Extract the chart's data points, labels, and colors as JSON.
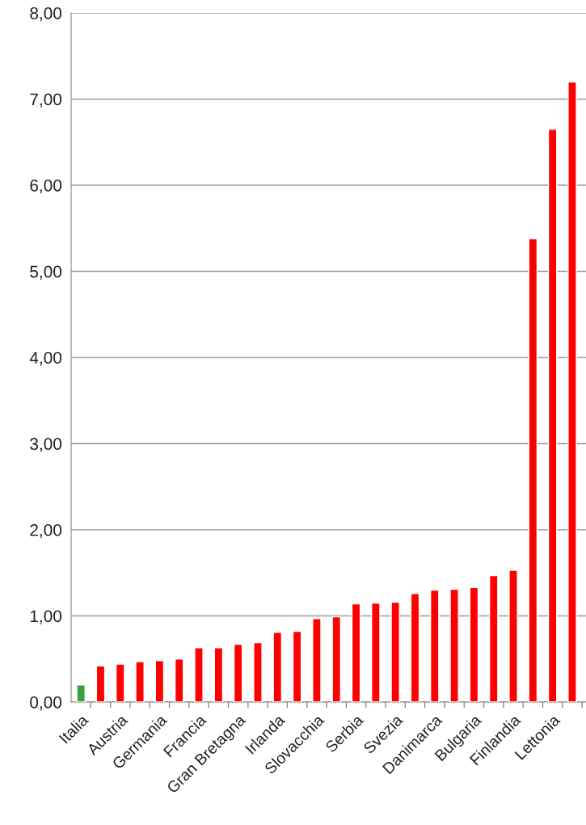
{
  "chart_data": {
    "type": "bar",
    "categories": [
      "Italia",
      null,
      "Austria",
      null,
      "Germania",
      null,
      "Francia",
      null,
      "Gran Bretagna",
      null,
      "Irlanda",
      null,
      "Slovacchia",
      null,
      "Serbia",
      null,
      "Svezia",
      null,
      "Danimarca",
      null,
      "Bulgaria",
      null,
      "Finlandia",
      null,
      "Lettonia",
      null
    ],
    "values": [
      0.2,
      0.42,
      0.44,
      0.47,
      0.48,
      0.5,
      0.63,
      0.63,
      0.67,
      0.69,
      0.81,
      0.82,
      0.97,
      0.99,
      1.14,
      1.15,
      1.16,
      1.26,
      1.3,
      1.31,
      1.33,
      1.47,
      1.53,
      5.38,
      6.65,
      7.2
    ],
    "colors": [
      "#3f9f3f",
      "#ff0000",
      "#ff0000",
      "#ff0000",
      "#ff0000",
      "#ff0000",
      "#ff0000",
      "#ff0000",
      "#ff0000",
      "#ff0000",
      "#ff0000",
      "#ff0000",
      "#ff0000",
      "#ff0000",
      "#ff0000",
      "#ff0000",
      "#ff0000",
      "#ff0000",
      "#ff0000",
      "#ff0000",
      "#ff0000",
      "#ff0000",
      "#ff0000",
      "#ff0000",
      "#ff0000",
      "#ff0000"
    ],
    "ylim": [
      0,
      8
    ],
    "yticks": [
      {
        "value": 0,
        "label": "0,00"
      },
      {
        "value": 1,
        "label": "1,00"
      },
      {
        "value": 2,
        "label": "2,00"
      },
      {
        "value": 3,
        "label": "3,00"
      },
      {
        "value": 4,
        "label": "4,00"
      },
      {
        "value": 5,
        "label": "5,00"
      },
      {
        "value": 6,
        "label": "6,00"
      },
      {
        "value": 7,
        "label": "7,00"
      },
      {
        "value": 8,
        "label": "8,00"
      }
    ],
    "grid": "y",
    "legend": false
  }
}
